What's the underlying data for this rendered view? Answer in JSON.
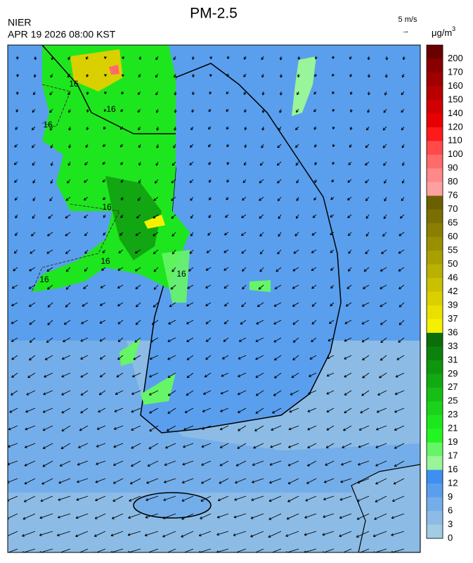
{
  "header": {
    "title": "PM-2.5",
    "agency": "NIER",
    "timestamp": "APR 19 2026 08:00 KST"
  },
  "wind_legend": {
    "label": "5 m/s",
    "arrow": "→"
  },
  "colorbar": {
    "unit": "μg/m",
    "unit_exponent": "3",
    "ticks": [
      200,
      170,
      160,
      150,
      140,
      120,
      110,
      100,
      90,
      80,
      76,
      70,
      65,
      60,
      55,
      50,
      46,
      42,
      39,
      37,
      36,
      33,
      31,
      29,
      27,
      25,
      23,
      21,
      19,
      17,
      16,
      12,
      9,
      6,
      3,
      0
    ],
    "colors": [
      "#6b0000",
      "#8a0000",
      "#a00000",
      "#b80000",
      "#d00000",
      "#e80000",
      "#ff1a1a",
      "#ff4a4a",
      "#ff6a6a",
      "#ff8888",
      "#ffa0a0",
      "#6a6000",
      "#7a6f00",
      "#8a7f00",
      "#9a8f00",
      "#aa9f00",
      "#bab000",
      "#cac000",
      "#dad000",
      "#eae000",
      "#f5f000",
      "#0a6e0a",
      "#0c820c",
      "#0f960f",
      "#12aa12",
      "#16be16",
      "#1ad21a",
      "#1ee61e",
      "#22f522",
      "#66f566",
      "#99f599",
      "#3f8ff0",
      "#5a9fee",
      "#74aeea",
      "#8cbce6",
      "#a2cbe4"
    ]
  },
  "contour_labels": [
    "16",
    "16",
    "16",
    "16",
    "16",
    "16",
    "16"
  ]
}
